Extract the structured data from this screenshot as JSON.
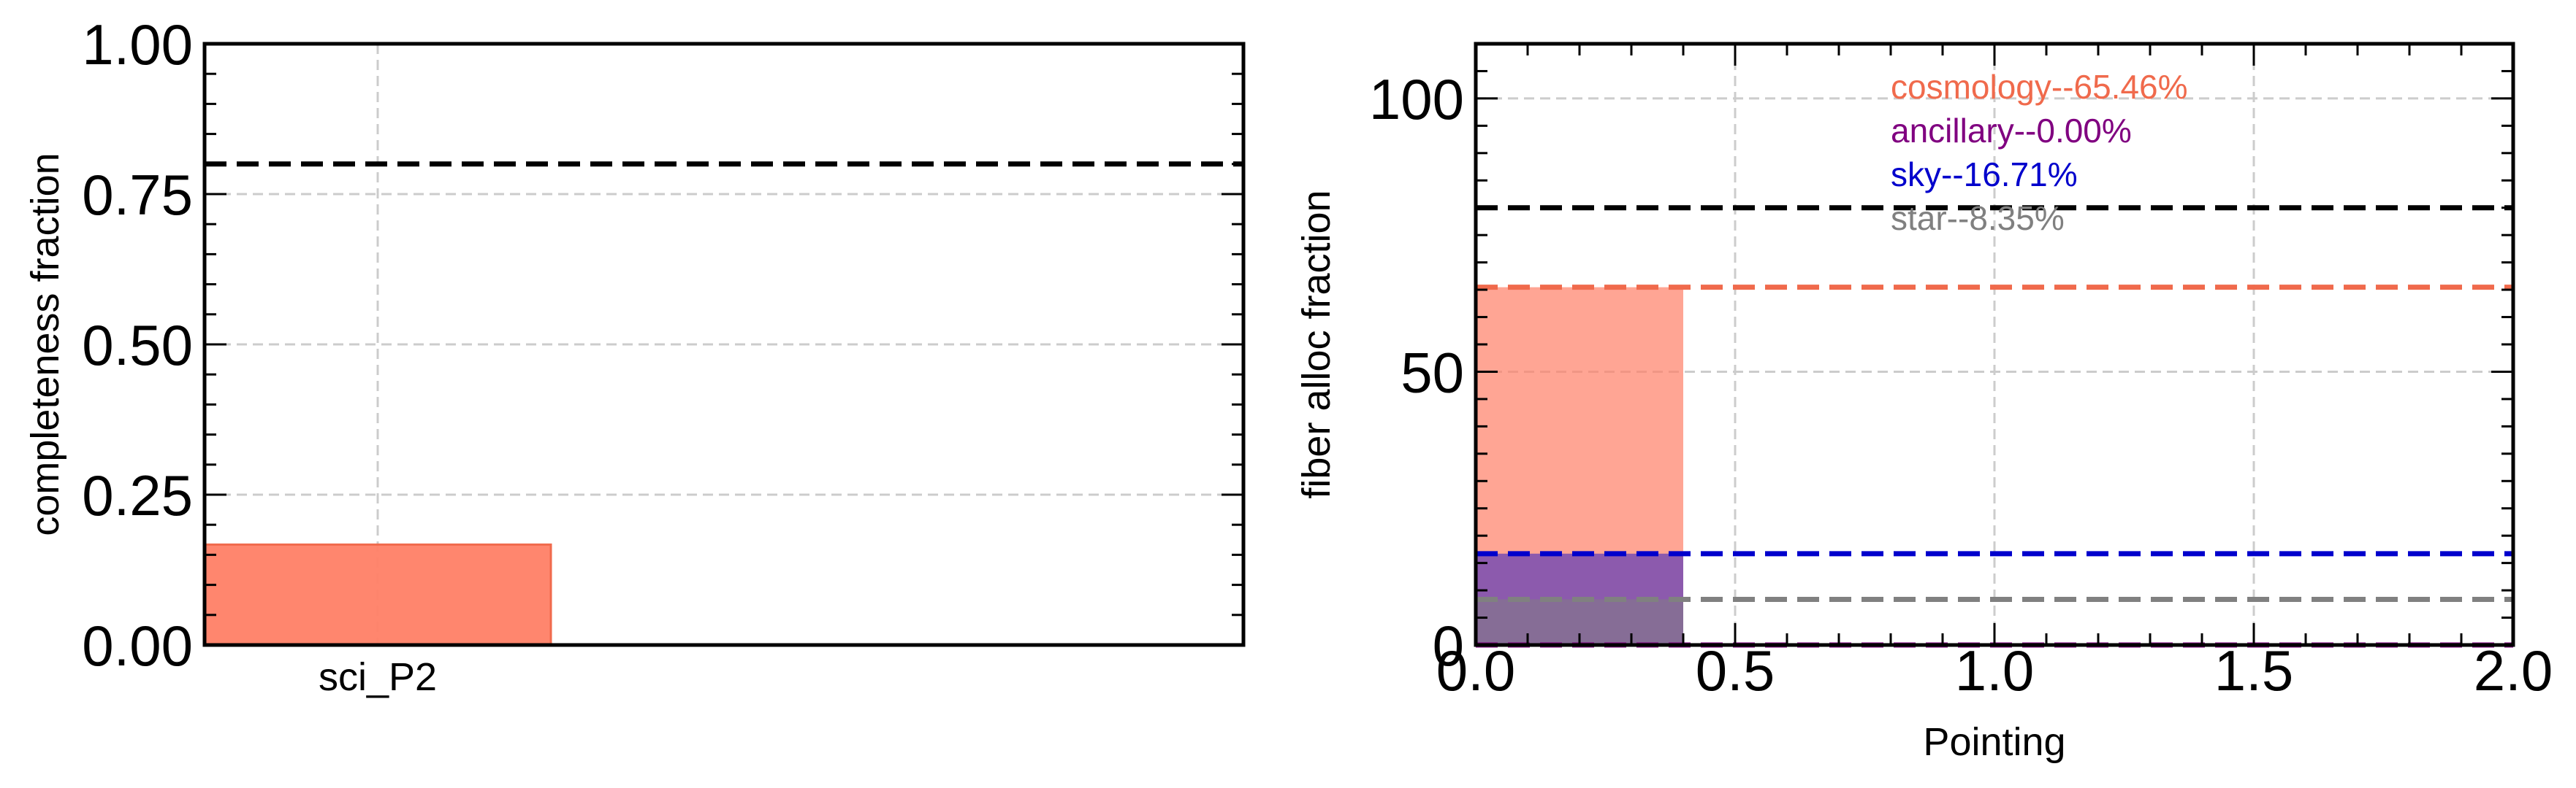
{
  "chart_data": [
    {
      "type": "bar",
      "title": "",
      "xlabel": "",
      "ylabel": "completeness fraction",
      "categories": [
        "sci_P2"
      ],
      "values": [
        0.167
      ],
      "bar_color": "#ff7f66",
      "xlim": [
        -0.5,
        2.5
      ],
      "ylim": [
        0,
        1.0
      ],
      "yticks": [
        0.0,
        0.25,
        0.5,
        0.75,
        1.0
      ],
      "ytick_labels": [
        "0.00",
        "0.25",
        "0.50",
        "0.75",
        "1.00"
      ],
      "reference_lines": [
        {
          "y": 0.8,
          "color": "#000000",
          "style": "dashed"
        }
      ],
      "grid": true
    },
    {
      "type": "bar",
      "title": "",
      "xlabel": "Pointing",
      "ylabel": "fiber alloc fraction",
      "xlim": [
        0.0,
        2.0
      ],
      "ylim": [
        0,
        110
      ],
      "xticks": [
        0.0,
        0.5,
        1.0,
        1.5,
        2.0
      ],
      "xtick_labels": [
        "0.0",
        "0.5",
        "1.0",
        "1.5",
        "2.0"
      ],
      "yticks": [
        0,
        50,
        100
      ],
      "ytick_labels": [
        "0",
        "50",
        "100"
      ],
      "grid": true,
      "bars": [
        {
          "name": "cosmology",
          "x_range": [
            0.0,
            0.4
          ],
          "value": 65.46,
          "color": "#ff7f66"
        },
        {
          "name": "ancillary",
          "x_range": [
            0.0,
            0.4
          ],
          "value": 0.0,
          "color": "#800080"
        },
        {
          "name": "sky",
          "x_range": [
            0.0,
            0.4
          ],
          "value": 16.71,
          "color": "#0000cc"
        },
        {
          "name": "star",
          "x_range": [
            0.0,
            0.4
          ],
          "value": 8.35,
          "color": "#808080"
        }
      ],
      "reference_lines": [
        {
          "y": 80,
          "color": "#000000",
          "style": "dashed"
        },
        {
          "y": 65.46,
          "color": "#f06a4c",
          "style": "dashed"
        },
        {
          "y": 16.71,
          "color": "#0000cc",
          "style": "dashed"
        },
        {
          "y": 8.35,
          "color": "#808080",
          "style": "dashed"
        },
        {
          "y": 0.0,
          "color": "#800080",
          "style": "dashed"
        }
      ],
      "annotations": [
        {
          "text": "cosmology--65.46%",
          "color": "#f06a4c"
        },
        {
          "text": "ancillary--0.00%",
          "color": "#800080"
        },
        {
          "text": "sky--16.71%",
          "color": "#0000cc"
        },
        {
          "text": "star--8.35%",
          "color": "#808080"
        }
      ]
    }
  ]
}
